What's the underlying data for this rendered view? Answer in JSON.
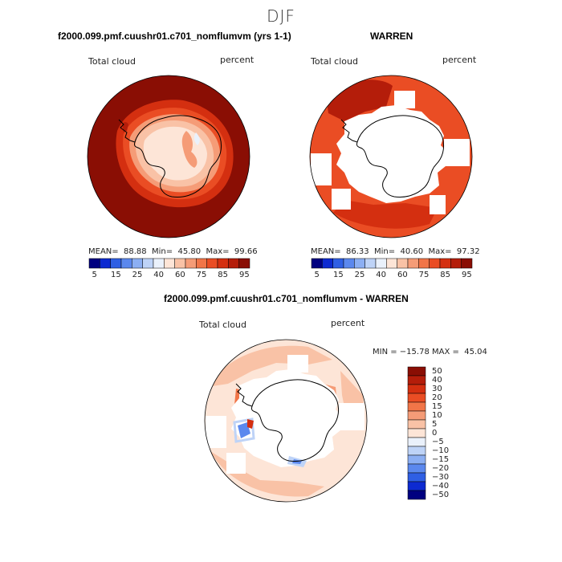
{
  "figure": {
    "season": "DJF"
  },
  "panels": [
    {
      "title": "f2000.099.pmf.cuushr01.c701_nomflumvm (yrs 1-1)",
      "field_label": "Total cloud",
      "units_label": "percent",
      "stats": {
        "mean_label": "MEAN=",
        "mean": "88.88",
        "min_label": "Min=",
        "min": "45.80",
        "max_label": "Max=",
        "max": "99.66"
      }
    },
    {
      "title": "WARREN",
      "field_label": "Total cloud",
      "units_label": "percent",
      "stats": {
        "mean_label": "MEAN=",
        "mean": "86.33",
        "min_label": "Min=",
        "min": "40.60",
        "max_label": "Max=",
        "max": "97.32"
      }
    },
    {
      "title": "f2000.099.pmf.cuushr01.c701_nomflumvm - WARREN",
      "field_label": "Total cloud",
      "units_label": "percent",
      "stats_line": "MIN = −15.78 MAX =  45.04"
    }
  ],
  "colorbar_horizontal": {
    "colors": [
      "#000080",
      "#0d2ad1",
      "#2f5fe4",
      "#5b88ee",
      "#8caff3",
      "#bed3f7",
      "#eaf1fb",
      "#fde5d7",
      "#f9c2a6",
      "#f59c77",
      "#f17548",
      "#ea4d24",
      "#d42f10",
      "#b41d0a",
      "#8a0e04"
    ],
    "tick_labels": [
      "5",
      "15",
      "25",
      "40",
      "60",
      "75",
      "85",
      "95"
    ]
  },
  "colorbar_vertical": {
    "colors_top_to_bottom": [
      "#8a0e04",
      "#b41d0a",
      "#d42f10",
      "#ea4d24",
      "#f17548",
      "#f59c77",
      "#f9c2a6",
      "#fde5d7",
      "#eaf1fb",
      "#bed3f7",
      "#8caff3",
      "#5b88ee",
      "#2f5fe4",
      "#0d2ad1",
      "#000080"
    ],
    "tick_labels": [
      "50",
      "40",
      "30",
      "20",
      "15",
      "10",
      "5",
      "0",
      "−5",
      "−10",
      "−15",
      "−20",
      "−30",
      "−40",
      "−50"
    ]
  },
  "map_colors": {
    "ocean_high": "#8a0e04",
    "band_dark": "#b41d0a",
    "band_red": "#d42f10",
    "band_orange": "#ea4d24",
    "band_light": "#f59c77",
    "band_pale": "#f9c2a6",
    "band_paler": "#fde5d7",
    "missing": "#ffffff",
    "neg_light": "#bed3f7",
    "neg_mid": "#5b88ee",
    "coast": "#000000"
  }
}
